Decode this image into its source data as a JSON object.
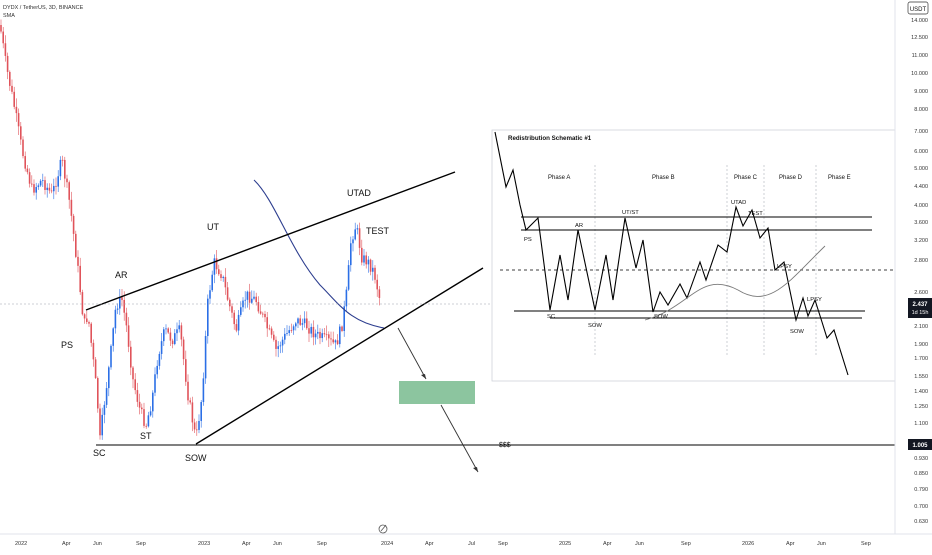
{
  "header": {
    "symbol": "DYDX / TetherUS, 3D, BINANCE",
    "indicator": "SMA"
  },
  "price_scale": {
    "currency": "USDT",
    "ticks": [
      "14.000",
      "12.500",
      "11.000",
      "10.000",
      "9.000",
      "8.000",
      "7.000",
      "6.000",
      "5.000",
      "4.400",
      "4.000",
      "3.600",
      "3.200",
      "2.800",
      "2.600",
      "2.100",
      "1.900",
      "1.700",
      "1.550",
      "1.400",
      "1.250",
      "1.100",
      "0.930",
      "0.850",
      "0.790",
      "0.700",
      "0.630"
    ],
    "last_price": "2.437",
    "countdown": "1d 15h",
    "level_label": "1.005"
  },
  "time_axis": {
    "labels": [
      "2022",
      "Apr",
      "Jun",
      "Sep",
      "2023",
      "Apr",
      "Jun",
      "Sep",
      "2024",
      "Apr",
      "Jul",
      "Sep",
      "2025",
      "Apr",
      "Jun",
      "Sep",
      "2026",
      "Apr",
      "Jun",
      "Sep"
    ]
  },
  "annotations": {
    "ps": "PS",
    "ar": "AR",
    "sc": "SC",
    "st": "ST",
    "sow": "SOW",
    "ut": "UT",
    "utad": "UTAD",
    "test": "TEST",
    "sss": "$$$"
  },
  "schematic": {
    "title": "Redistribution Schematic #1",
    "phases": [
      "Phase A",
      "Phase B",
      "Phase C",
      "Phase D",
      "Phase E"
    ],
    "labels": {
      "ps": "PS",
      "ar": "AR",
      "ut_st": "UT/ST",
      "utad": "UTAD",
      "test": "TEST",
      "lpsy1": "LPSY",
      "lpsy2": "LPSY",
      "sc": "SC",
      "sow1": "SOW",
      "sow2": "SOW",
      "sow3": "SOW"
    }
  },
  "colors": {
    "up": "#2b6fe6",
    "down": "#e0535a",
    "sma": "#2d3e8f",
    "target_zone": "#7fbf95",
    "axis_text": "#333333",
    "price_tag": "#131722"
  },
  "chart_data": {
    "type": "candlestick",
    "symbol": "DYDX / TetherUS",
    "timeframe": "3D",
    "exchange": "BINANCE",
    "y_scale": "log",
    "ylim": [
      0.6,
      15
    ],
    "x_labels": [
      "2022",
      "Apr",
      "Jun",
      "Sep",
      "2023",
      "Apr",
      "Jun",
      "Sep",
      "2024",
      "Apr",
      "Jul",
      "Sep",
      "2025",
      "Apr",
      "Jun",
      "Sep",
      "2026",
      "Apr",
      "Jun",
      "Sep"
    ],
    "key_points": [
      {
        "label": "PS",
        "price": 2.0
      },
      {
        "label": "AR",
        "price": 2.7
      },
      {
        "label": "SC",
        "price": 1.0
      },
      {
        "label": "ST",
        "price": 1.4
      },
      {
        "label": "SOW",
        "price": 1.0
      },
      {
        "label": "UT",
        "price": 3.1
      },
      {
        "label": "UTAD",
        "price": 4.2
      },
      {
        "label": "TEST",
        "price": 3.3
      }
    ],
    "series": [
      {
        "name": "SMA",
        "values": [
          5.0,
          3.2,
          2.4,
          2.15,
          2.4
        ]
      }
    ],
    "levels": [
      {
        "label": "$$$",
        "price": 1.005
      }
    ],
    "last_price": 2.437
  }
}
